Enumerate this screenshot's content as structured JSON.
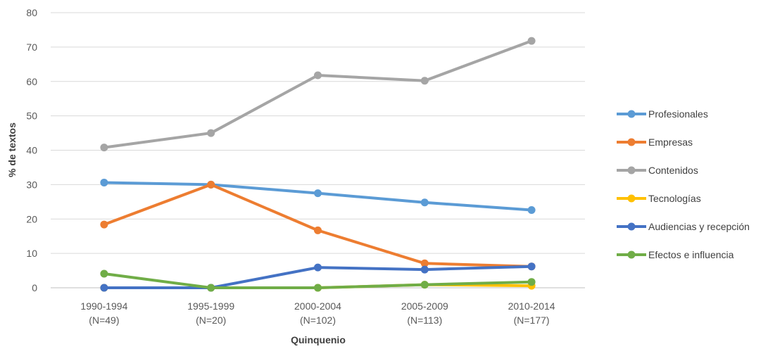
{
  "chart_data": {
    "type": "line",
    "title": "",
    "xlabel": "Quinquenio",
    "ylabel": "% de textos",
    "ylim": [
      0,
      80
    ],
    "yticks": [
      0,
      10,
      20,
      30,
      40,
      50,
      60,
      70,
      80
    ],
    "grid": true,
    "legend_position": "right",
    "categories": [
      [
        "1990-1994",
        "(N=49)"
      ],
      [
        "1995-1999",
        "(N=20)"
      ],
      [
        "2000-2004",
        "(N=102)"
      ],
      [
        "2005-2009",
        "(N=113)"
      ],
      [
        "2010-2014",
        "(N=177)"
      ]
    ],
    "series": [
      {
        "name": "Profesionales",
        "color": "#5B9BD5",
        "values": [
          30.6,
          30.0,
          27.5,
          24.8,
          22.6
        ]
      },
      {
        "name": "Empresas",
        "color": "#ED7D31",
        "values": [
          18.4,
          30.0,
          16.7,
          7.1,
          6.2
        ]
      },
      {
        "name": "Contenidos",
        "color": "#A5A5A5",
        "values": [
          40.8,
          45.0,
          61.8,
          60.2,
          71.8
        ]
      },
      {
        "name": "Tecnologías",
        "color": "#FFC000",
        "values": [
          0,
          0,
          0,
          0.9,
          0.6
        ]
      },
      {
        "name": "Audiencias y recepción",
        "color": "#4472C4",
        "values": [
          0,
          0,
          5.9,
          5.3,
          6.2
        ]
      },
      {
        "name": "Efectos e influencia",
        "color": "#70AD47",
        "values": [
          4.1,
          0,
          0,
          0.9,
          1.7
        ]
      }
    ]
  }
}
